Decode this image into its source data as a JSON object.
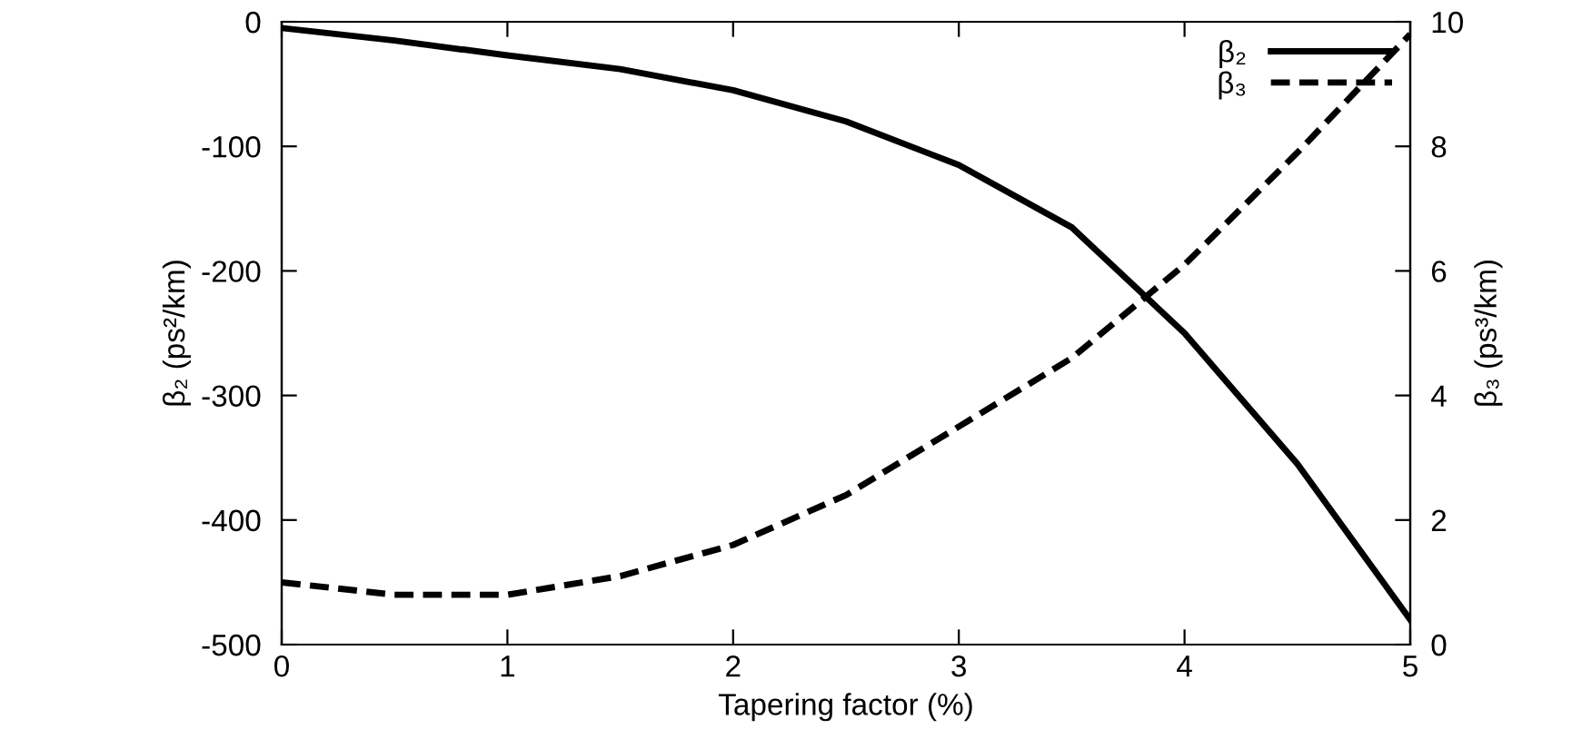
{
  "chart_data": {
    "type": "line",
    "xlabel": "Tapering factor (%)",
    "ylabel": "β₂ (ps²/km)",
    "y2label": "β₃ (ps³/km)",
    "x": [
      0,
      0.5,
      1,
      1.5,
      2,
      2.5,
      3,
      3.5,
      4,
      4.5,
      5
    ],
    "series": [
      {
        "name": "β₂",
        "color": "#000000",
        "line_style": "solid",
        "values": [
          -5,
          -15,
          -27,
          -38,
          -55,
          -80,
          -115,
          -165,
          -250,
          -355,
          -480
        ]
      },
      {
        "name": "β₃",
        "color": "#000000",
        "line_style": "dashed",
        "axis": "y2",
        "values": [
          1.0,
          0.8,
          0.8,
          1.1,
          1.6,
          2.4,
          3.5,
          4.6,
          6.1,
          7.9,
          9.8
        ]
      }
    ],
    "xlim": [
      0,
      5
    ],
    "xticks": [
      0,
      1,
      2,
      3,
      4,
      5
    ],
    "ylim": [
      -500,
      0
    ],
    "yticks": [
      -500,
      -400,
      -300,
      -200,
      -100,
      0
    ],
    "y2lim": [
      0,
      10
    ],
    "y2ticks": [
      0,
      2,
      4,
      6,
      8,
      10
    ],
    "legend": "top right",
    "grid": false,
    "marker": "none"
  }
}
